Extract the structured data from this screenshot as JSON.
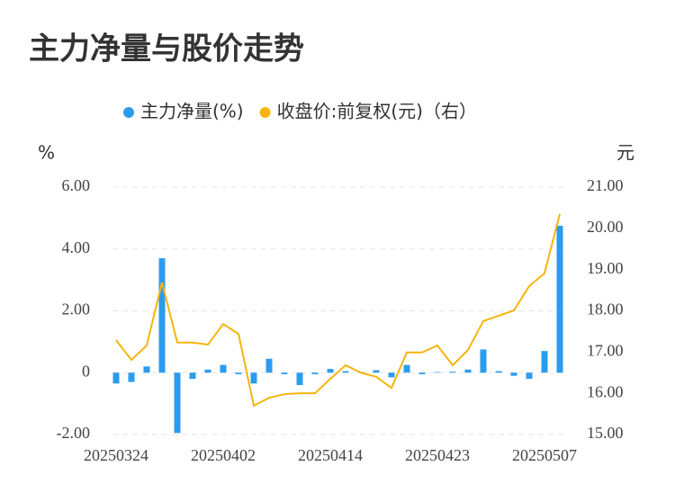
{
  "chart_data": {
    "type": "bar-line",
    "title": "主力净量与股价走势",
    "y_label": "%",
    "y2_label": "元",
    "categories": [
      "20250324",
      null,
      null,
      null,
      null,
      null,
      null,
      "20250402",
      null,
      null,
      null,
      null,
      null,
      null,
      "20250414",
      null,
      null,
      null,
      null,
      null,
      null,
      "20250423",
      null,
      null,
      null,
      null,
      null,
      null,
      "20250507",
      null
    ],
    "series": [
      {
        "name": "主力净量(%)",
        "type": "bar",
        "color": "#2b9bee",
        "axis": "y",
        "values": [
          -0.35,
          -0.3,
          0.2,
          3.7,
          -1.95,
          -0.2,
          0.1,
          0.25,
          -0.05,
          -0.35,
          0.45,
          -0.05,
          -0.4,
          -0.05,
          0.12,
          0.05,
          0.02,
          0.08,
          -0.15,
          0.25,
          -0.05,
          0.02,
          0.03,
          0.1,
          0.75,
          0.05,
          -0.1,
          -0.2,
          0.7,
          4.75
        ]
      },
      {
        "name": "收盘价:前复权(元)（右）",
        "type": "line",
        "color": "#f5b50f",
        "axis": "y2",
        "values": [
          17.29,
          16.81,
          17.16,
          18.69,
          17.23,
          17.23,
          17.18,
          17.68,
          17.44,
          15.7,
          15.89,
          15.98,
          16.0,
          16.0,
          16.35,
          16.68,
          16.5,
          16.4,
          16.13,
          16.99,
          16.99,
          17.16,
          16.68,
          17.05,
          17.75,
          17.88,
          18.01,
          18.6,
          18.91,
          20.35
        ]
      }
    ],
    "ylim": [
      -2,
      6
    ],
    "yticks": [
      {
        "value": -2,
        "label": "-2.00"
      },
      0,
      {
        "value": 2,
        "label": "2.00"
      },
      {
        "value": 4,
        "label": "4.00"
      },
      {
        "value": 6,
        "label": "6.00"
      }
    ],
    "y2lim": [
      15,
      21
    ],
    "y2ticks": [
      {
        "value": 15,
        "label": "15.00"
      },
      {
        "value": 16,
        "label": "16.00"
      },
      {
        "value": 17,
        "label": "17.00"
      },
      {
        "value": 18,
        "label": "18.00"
      },
      {
        "value": 19,
        "label": "19.00"
      },
      {
        "value": 20,
        "label": "20.00"
      },
      {
        "value": 21,
        "label": "21.00"
      }
    ],
    "grid": true
  }
}
